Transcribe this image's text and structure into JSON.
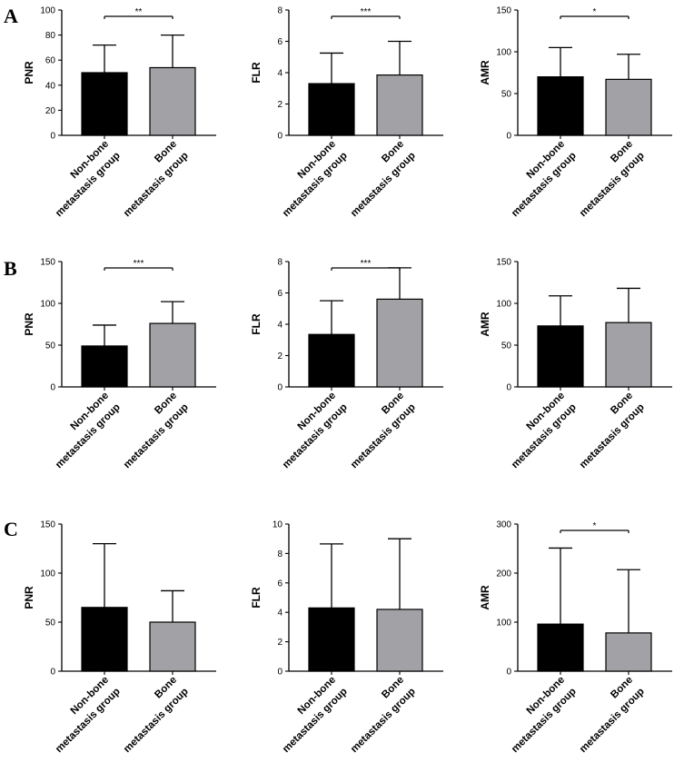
{
  "figure": {
    "rows": [
      {
        "letter": "A"
      },
      {
        "letter": "B"
      },
      {
        "letter": "C"
      }
    ]
  },
  "chart_data": [
    {
      "type": "bar",
      "row": 0,
      "col": 0,
      "ylabel": "PNR",
      "ylim": [
        0,
        100
      ],
      "yticks": [
        0,
        20,
        40,
        60,
        80,
        100
      ],
      "categories": [
        [
          "Non-bone",
          "metastasis group"
        ],
        [
          "Bone",
          "metastasis group"
        ]
      ],
      "values": [
        50,
        54
      ],
      "errors": [
        22,
        26
      ],
      "colors": [
        "#000000",
        "#a1a1a6"
      ],
      "significance": "**"
    },
    {
      "type": "bar",
      "row": 0,
      "col": 1,
      "ylabel": "FLR",
      "ylim": [
        0,
        8
      ],
      "yticks": [
        0,
        2,
        4,
        6,
        8
      ],
      "categories": [
        [
          "Non-bone",
          "metastasis group"
        ],
        [
          "Bone",
          "metastasis group"
        ]
      ],
      "values": [
        3.3,
        3.85
      ],
      "errors": [
        1.95,
        2.15
      ],
      "colors": [
        "#000000",
        "#a1a1a6"
      ],
      "significance": "***"
    },
    {
      "type": "bar",
      "row": 0,
      "col": 2,
      "ylabel": "AMR",
      "ylim": [
        0,
        150
      ],
      "yticks": [
        0,
        50,
        100,
        150
      ],
      "categories": [
        [
          "Non-bone",
          "metastasis group"
        ],
        [
          "Bone",
          "metastasis group"
        ]
      ],
      "values": [
        70,
        67
      ],
      "errors": [
        35,
        30
      ],
      "colors": [
        "#000000",
        "#a1a1a6"
      ],
      "significance": "*"
    },
    {
      "type": "bar",
      "row": 1,
      "col": 0,
      "ylabel": "PNR",
      "ylim": [
        0,
        150
      ],
      "yticks": [
        0,
        50,
        100,
        150
      ],
      "categories": [
        [
          "Non-bone",
          "metastasis group"
        ],
        [
          "Bone",
          "metastasis group"
        ]
      ],
      "values": [
        49,
        76
      ],
      "errors": [
        25,
        26
      ],
      "colors": [
        "#000000",
        "#a1a1a6"
      ],
      "significance": "***"
    },
    {
      "type": "bar",
      "row": 1,
      "col": 1,
      "ylabel": "FLR",
      "ylim": [
        0,
        8
      ],
      "yticks": [
        0,
        2,
        4,
        6,
        8
      ],
      "categories": [
        [
          "Non-bone",
          "metastasis group"
        ],
        [
          "Bone",
          "metastasis group"
        ]
      ],
      "values": [
        3.35,
        5.6
      ],
      "errors": [
        2.15,
        2.0
      ],
      "colors": [
        "#000000",
        "#a1a1a6"
      ],
      "significance": "***"
    },
    {
      "type": "bar",
      "row": 1,
      "col": 2,
      "ylabel": "AMR",
      "ylim": [
        0,
        150
      ],
      "yticks": [
        0,
        50,
        100,
        150
      ],
      "categories": [
        [
          "Non-bone",
          "metastasis group"
        ],
        [
          "Bone",
          "metastasis group"
        ]
      ],
      "values": [
        73,
        77
      ],
      "errors": [
        36,
        41
      ],
      "colors": [
        "#000000",
        "#a1a1a6"
      ],
      "significance": ""
    },
    {
      "type": "bar",
      "row": 2,
      "col": 0,
      "ylabel": "PNR",
      "ylim": [
        0,
        150
      ],
      "yticks": [
        0,
        50,
        100,
        150
      ],
      "categories": [
        [
          "Non-bone",
          "metastasis group"
        ],
        [
          "Bone",
          "metastasis group"
        ]
      ],
      "values": [
        65,
        50
      ],
      "errors": [
        65,
        32
      ],
      "colors": [
        "#000000",
        "#a1a1a6"
      ],
      "significance": ""
    },
    {
      "type": "bar",
      "row": 2,
      "col": 1,
      "ylabel": "FLR",
      "ylim": [
        0,
        10
      ],
      "yticks": [
        0,
        2,
        4,
        6,
        8,
        10
      ],
      "categories": [
        [
          "Non-bone",
          "metastasis group"
        ],
        [
          "Bone",
          "metastasis group"
        ]
      ],
      "values": [
        4.3,
        4.2
      ],
      "errors": [
        4.35,
        4.8
      ],
      "colors": [
        "#000000",
        "#a1a1a6"
      ],
      "significance": ""
    },
    {
      "type": "bar",
      "row": 2,
      "col": 2,
      "ylabel": "AMR",
      "ylim": [
        0,
        300
      ],
      "yticks": [
        0,
        100,
        200,
        300
      ],
      "categories": [
        [
          "Non-bone",
          "metastasis group"
        ],
        [
          "Bone",
          "metastasis group"
        ]
      ],
      "values": [
        96,
        78
      ],
      "errors": [
        155,
        129
      ],
      "colors": [
        "#000000",
        "#a1a1a6"
      ],
      "significance": "*"
    }
  ]
}
